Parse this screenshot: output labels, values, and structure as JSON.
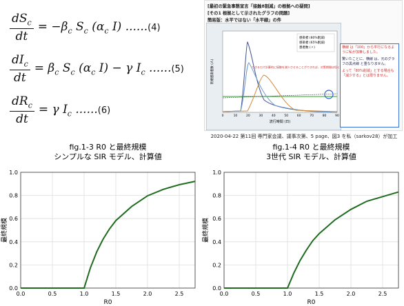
{
  "equations": [
    {
      "num": [
        "dS",
        "c"
      ],
      "den": "dt",
      "rhs": [
        "= −β",
        "c",
        " S",
        "c",
        " (α",
        "c",
        " I) ...... "
      ],
      "tag": "(4)"
    },
    {
      "num": [
        "dI",
        "c"
      ],
      "den": "dt",
      "rhs": [
        "= β",
        "c",
        " S",
        "c",
        " (α",
        "c",
        " I) − γ I",
        "c",
        " ...... "
      ],
      "tag": "(5)"
    },
    {
      "num": [
        "dR",
        "c"
      ],
      "den": "dt",
      "rhs": [
        "= γ I",
        "c",
        " ...... "
      ],
      "tag": "(6)"
    }
  ],
  "slide": {
    "header": [
      "[最初の緊急事態宣言「接触8割減」の根拠への疑問]",
      "[その1 根拠として示されたグラフの問題]",
      "簡易版：水平ではない「水平線」の件"
    ],
    "legend": [
      "感染者 (80%削減)",
      "感染者 (65%削減)",
      "患者数 (〃)"
    ],
    "xlabel": "流行時間 (日)",
    "ylabel": "新規感染者数 (人)",
    "xticks": [
      "0",
      "10",
      "20",
      "30",
      "40",
      "50",
      "60",
      "70",
      "80",
      "90"
    ],
    "annotation": "できるだけ計算的に接触を減少させることができれば、対策期間は短く済む",
    "note": [
      "横線 は「100」から平行になるように私が加筆しました。",
      "驚いたことに、横線 は、元のグラフの黒点線 と重なりません。",
      "よって「80%削減」とする場合も「減少する」とは限りません。"
    ]
  },
  "caption": "2020-04-22 第11回 専門家会議、議事次第、5 page、図3 を私（sarkov28）が加工",
  "chart_data": [
    {
      "type": "line",
      "title": "fig.1-3  R0 と最終規模",
      "subtitle": "シンプルな SIR モデル、計算値",
      "xlabel": "R0",
      "ylabel": "最終規模",
      "x": [
        0,
        1,
        1.1,
        1.2,
        1.3,
        1.4,
        1.5,
        1.75,
        2,
        2.25,
        2.5,
        2.75
      ],
      "values": [
        0,
        0,
        0.176,
        0.314,
        0.423,
        0.511,
        0.583,
        0.705,
        0.797,
        0.853,
        0.893,
        0.922
      ],
      "color": "#1e6b1e",
      "grid": true,
      "xlim": [
        0,
        2.75
      ],
      "ylim": [
        0,
        1
      ],
      "xticks": [
        {
          "value": 0,
          "label": "0.0"
        },
        {
          "value": 0.5,
          "label": "0.5"
        },
        {
          "value": 1,
          "label": "1.0"
        },
        {
          "value": 1.5,
          "label": "1.5"
        },
        {
          "value": 2,
          "label": "2.0"
        },
        {
          "value": 2.5,
          "label": "2.5"
        }
      ],
      "yticks": [
        {
          "value": 0,
          "label": "0.0"
        },
        {
          "value": 0.2,
          "label": "0.2"
        },
        {
          "value": 0.4,
          "label": "0.4"
        },
        {
          "value": 0.6,
          "label": "0.6"
        },
        {
          "value": 0.8,
          "label": "0.8"
        },
        {
          "value": 1,
          "label": "1.0"
        }
      ]
    },
    {
      "type": "line",
      "title": "fig.1-4  R0 と最終規模",
      "subtitle": "3世代 SIR モデル、計算値",
      "xlabel": "R0",
      "ylabel": "最終規模",
      "x": [
        0,
        1,
        1.1,
        1.2,
        1.3,
        1.4,
        1.5,
        1.75,
        2,
        2.25,
        2.5,
        2.75
      ],
      "values": [
        0,
        0,
        0.13,
        0.24,
        0.33,
        0.41,
        0.47,
        0.59,
        0.68,
        0.75,
        0.79,
        0.83
      ],
      "color": "#1e6b1e",
      "grid": true,
      "xlim": [
        0,
        2.75
      ],
      "ylim": [
        0,
        1
      ],
      "xticks": [
        {
          "value": 0,
          "label": "0.0"
        },
        {
          "value": 0.5,
          "label": "0.5"
        },
        {
          "value": 1,
          "label": "1.0"
        },
        {
          "value": 1.5,
          "label": "1.5"
        },
        {
          "value": 2,
          "label": "2.0"
        },
        {
          "value": 2.5,
          "label": "2.5"
        }
      ],
      "yticks": [
        {
          "value": 0,
          "label": "0.0"
        },
        {
          "value": 0.2,
          "label": "0.2"
        },
        {
          "value": 0.4,
          "label": "0.4"
        },
        {
          "value": 0.6,
          "label": "0.6"
        },
        {
          "value": 0.8,
          "label": "0.8"
        },
        {
          "value": 1,
          "label": "1.0"
        }
      ]
    }
  ]
}
